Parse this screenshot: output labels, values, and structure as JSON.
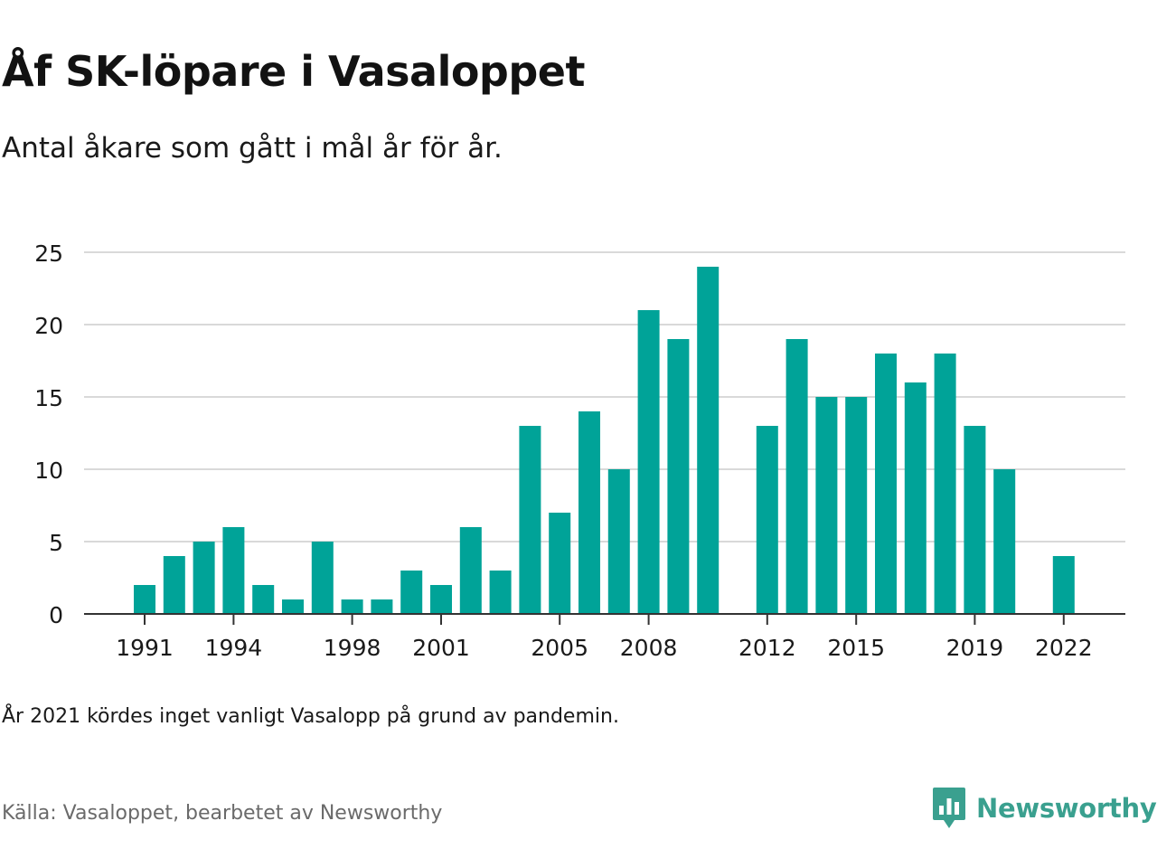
{
  "title": "Åf SK-löpare i Vasaloppet",
  "subtitle": "Antal åkare som gått i mål år för år.",
  "note": "År 2021 kördes inget vanligt Vasalopp på grund av pandemin.",
  "source": "Källa: Vasaloppet, bearbetet av Newsworthy",
  "brand": {
    "name": "Newsworthy",
    "icon": "newsworthy-logo-icon"
  },
  "colors": {
    "bar": "#00a398",
    "grid": "#d9d9d9",
    "axis": "#333333",
    "brand": "#3aa08f",
    "text": "#1a1a1a"
  },
  "chart_data": {
    "type": "bar",
    "x": [
      1991,
      1992,
      1993,
      1994,
      1995,
      1996,
      1997,
      1998,
      1999,
      2000,
      2001,
      2002,
      2003,
      2004,
      2005,
      2006,
      2007,
      2008,
      2009,
      2010,
      2011,
      2012,
      2013,
      2014,
      2015,
      2016,
      2017,
      2018,
      2019,
      2020,
      2021,
      2022
    ],
    "values": [
      2,
      4,
      5,
      6,
      2,
      1,
      5,
      1,
      1,
      3,
      2,
      6,
      3,
      13,
      7,
      14,
      10,
      21,
      19,
      24,
      null,
      13,
      19,
      15,
      15,
      18,
      16,
      18,
      13,
      10,
      null,
      4
    ],
    "x_ticks": [
      "1991",
      "1994",
      "1998",
      "2001",
      "2005",
      "2008",
      "2012",
      "2015",
      "2019",
      "2022"
    ],
    "y_ticks": [
      "0",
      "5",
      "10",
      "15",
      "20",
      "25"
    ],
    "ylim": [
      0,
      25
    ],
    "grid": true
  }
}
